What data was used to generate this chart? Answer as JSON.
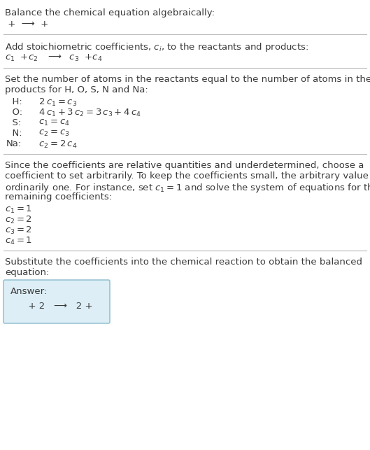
{
  "bg_color": "#ffffff",
  "text_color": "#3a3a3a",
  "line_color": "#bbbbbb",
  "answer_box_facecolor": "#ddeef6",
  "answer_box_edgecolor": "#88bbcc",
  "title1": "Balance the chemical equation algebraically:",
  "line1": " +  ⟶  + ",
  "section2_title": "Add stoichiometric coefficients, $c_i$, to the reactants and products:",
  "line2_parts": [
    "$c_1$  +$c_2$   ⟶  $c_3$  +$c_4$"
  ],
  "section3_line1": "Set the number of atoms in the reactants equal to the number of atoms in the",
  "section3_line2": "products for H, O, S, N and Na:",
  "equations": [
    [
      "  H:",
      "  $2\\,c_1 = c_3$"
    ],
    [
      "  O:",
      "  $4\\,c_1 + 3\\,c_2 = 3\\,c_3 + 4\\,c_4$"
    ],
    [
      "  S:",
      "  $c_1 = c_4$"
    ],
    [
      "  N:",
      "  $c_2 = c_3$"
    ],
    [
      "Na:",
      "  $c_2 = 2\\,c_4$"
    ]
  ],
  "section4_line1": "Since the coefficients are relative quantities and underdetermined, choose a",
  "section4_line2": "coefficient to set arbitrarily. To keep the coefficients small, the arbitrary value is",
  "section4_line3": "ordinarily one. For instance, set $c_1 = 1$ and solve the system of equations for the",
  "section4_line4": "remaining coefficients:",
  "coeff_lines": [
    "$c_1 = 1$",
    "$c_2 = 2$",
    "$c_3 = 2$",
    "$c_4 = 1$"
  ],
  "section5_line1": "Substitute the coefficients into the chemical reaction to obtain the balanced",
  "section5_line2": "equation:",
  "answer_label": "Answer:",
  "answer_eq": "      + 2   ⟶   2 + "
}
